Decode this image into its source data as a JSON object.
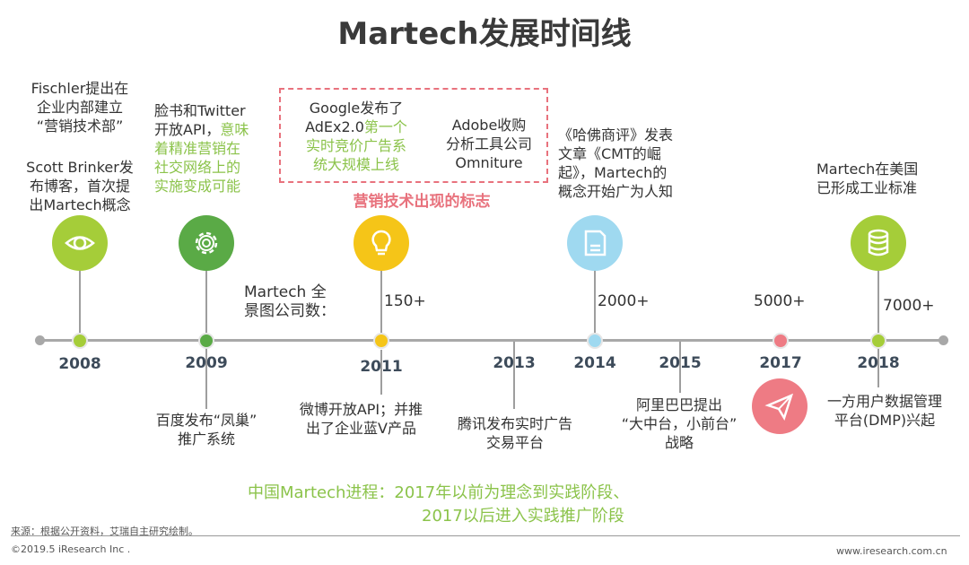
{
  "title": "Martech发展时间线",
  "years": [
    "2008",
    "2009",
    "2011",
    "2013",
    "2014",
    "2015",
    "2017",
    "2018"
  ],
  "top_events": {
    "e2008_a": [
      "Fischler提出在",
      "企业内部建立",
      "“营销技术部”"
    ],
    "e2008_b": [
      "Scott Brinker发",
      "布博客，首次提",
      "出Martech概念"
    ],
    "e2009_plain": [
      "脸书和Twitter",
      "开放API，"
    ],
    "e2009_green_inline": "意味",
    "e2009_green": [
      "着精准营销在",
      "社交网络上的",
      "实施变成可能"
    ],
    "e2011_plain": [
      "Google发布了",
      "AdEx2.0"
    ],
    "e2011_green_inline": "第一个",
    "e2011_green": [
      "实时竞价广告系",
      "统大规模上线"
    ],
    "adobe": [
      "Adobe收购",
      "分析工具公司",
      "Omniture"
    ],
    "marker_label": "营销技术出现的标志",
    "e2014": [
      "《哈佛商评》发表",
      "文章《CMT的崛",
      "起》，Martech的",
      "概念开始广为人知"
    ],
    "e2018": [
      "Martech在美国",
      "已形成工业标准"
    ]
  },
  "bottom_events": {
    "e2009": [
      "百度发布“凤巢”",
      "推广系统"
    ],
    "e2011": [
      "微博开放API；并推",
      "出了企业蓝V产品"
    ],
    "e2013": [
      "腾讯发布实时广告",
      "交易平台"
    ],
    "e2015": [
      "阿里巴巴提出",
      "“大中台，小前台”",
      "战略"
    ],
    "e2018": [
      "一方用户数据管理",
      "平台(DMP)兴起"
    ]
  },
  "landscape_label": [
    "Martech 全",
    "景图公司数："
  ],
  "counts": [
    "150+",
    "2000+",
    "5000+",
    "7000+"
  ],
  "conclusion": [
    "中国Martech进程：2017年以前为理念到实践阶段、",
    "2017以后进入实践推广阶段"
  ],
  "source": "来源：根据公开资料，艾瑞自主研究绘制。",
  "copyright": "©2019.5 iResearch Inc .",
  "website": "www.iresearch.com.cn",
  "icons": [
    "eye-icon",
    "gear-icon",
    "lightbulb-icon",
    "document-icon",
    "paper-plane-icon",
    "database-icon"
  ],
  "colors": {
    "green_light": "#a5cd39",
    "green_dark": "#5aaa46",
    "yellow": "#f5c518",
    "light_blue": "#9fd9f0",
    "red": "#ee7b84",
    "text_green": "#8bc34a",
    "text_red": "#e8727d"
  }
}
